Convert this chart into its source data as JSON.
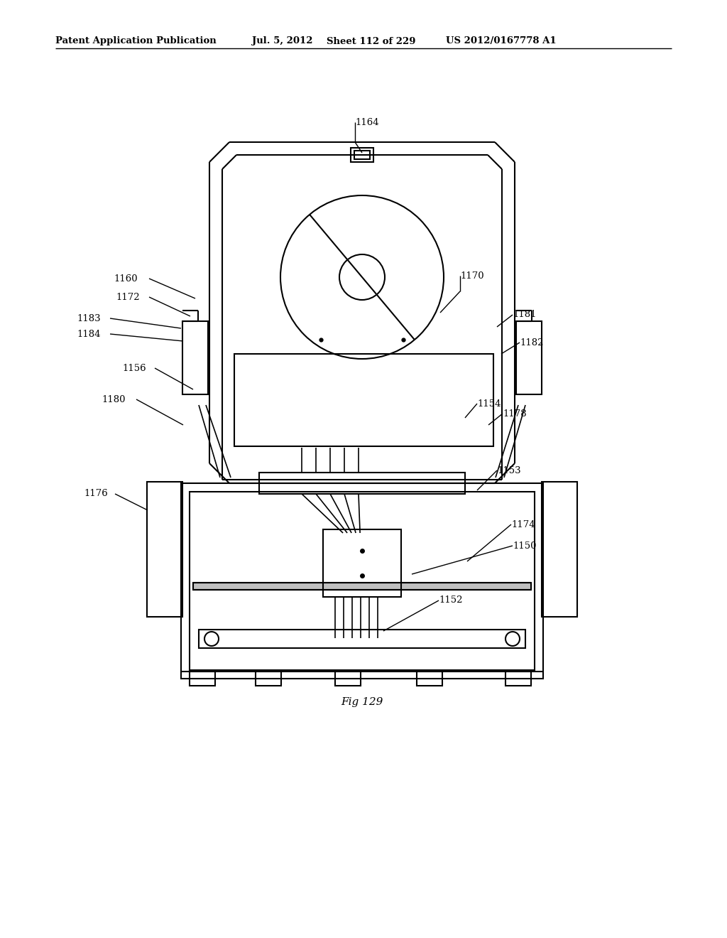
{
  "bg_color": "#ffffff",
  "line_color": "#000000",
  "header_text": "Patent Application Publication",
  "header_date": "Jul. 5, 2012",
  "header_sheet": "Sheet 112 of 229",
  "header_patent": "US 2012/0167778 A1",
  "fig_label": "Fig 129"
}
